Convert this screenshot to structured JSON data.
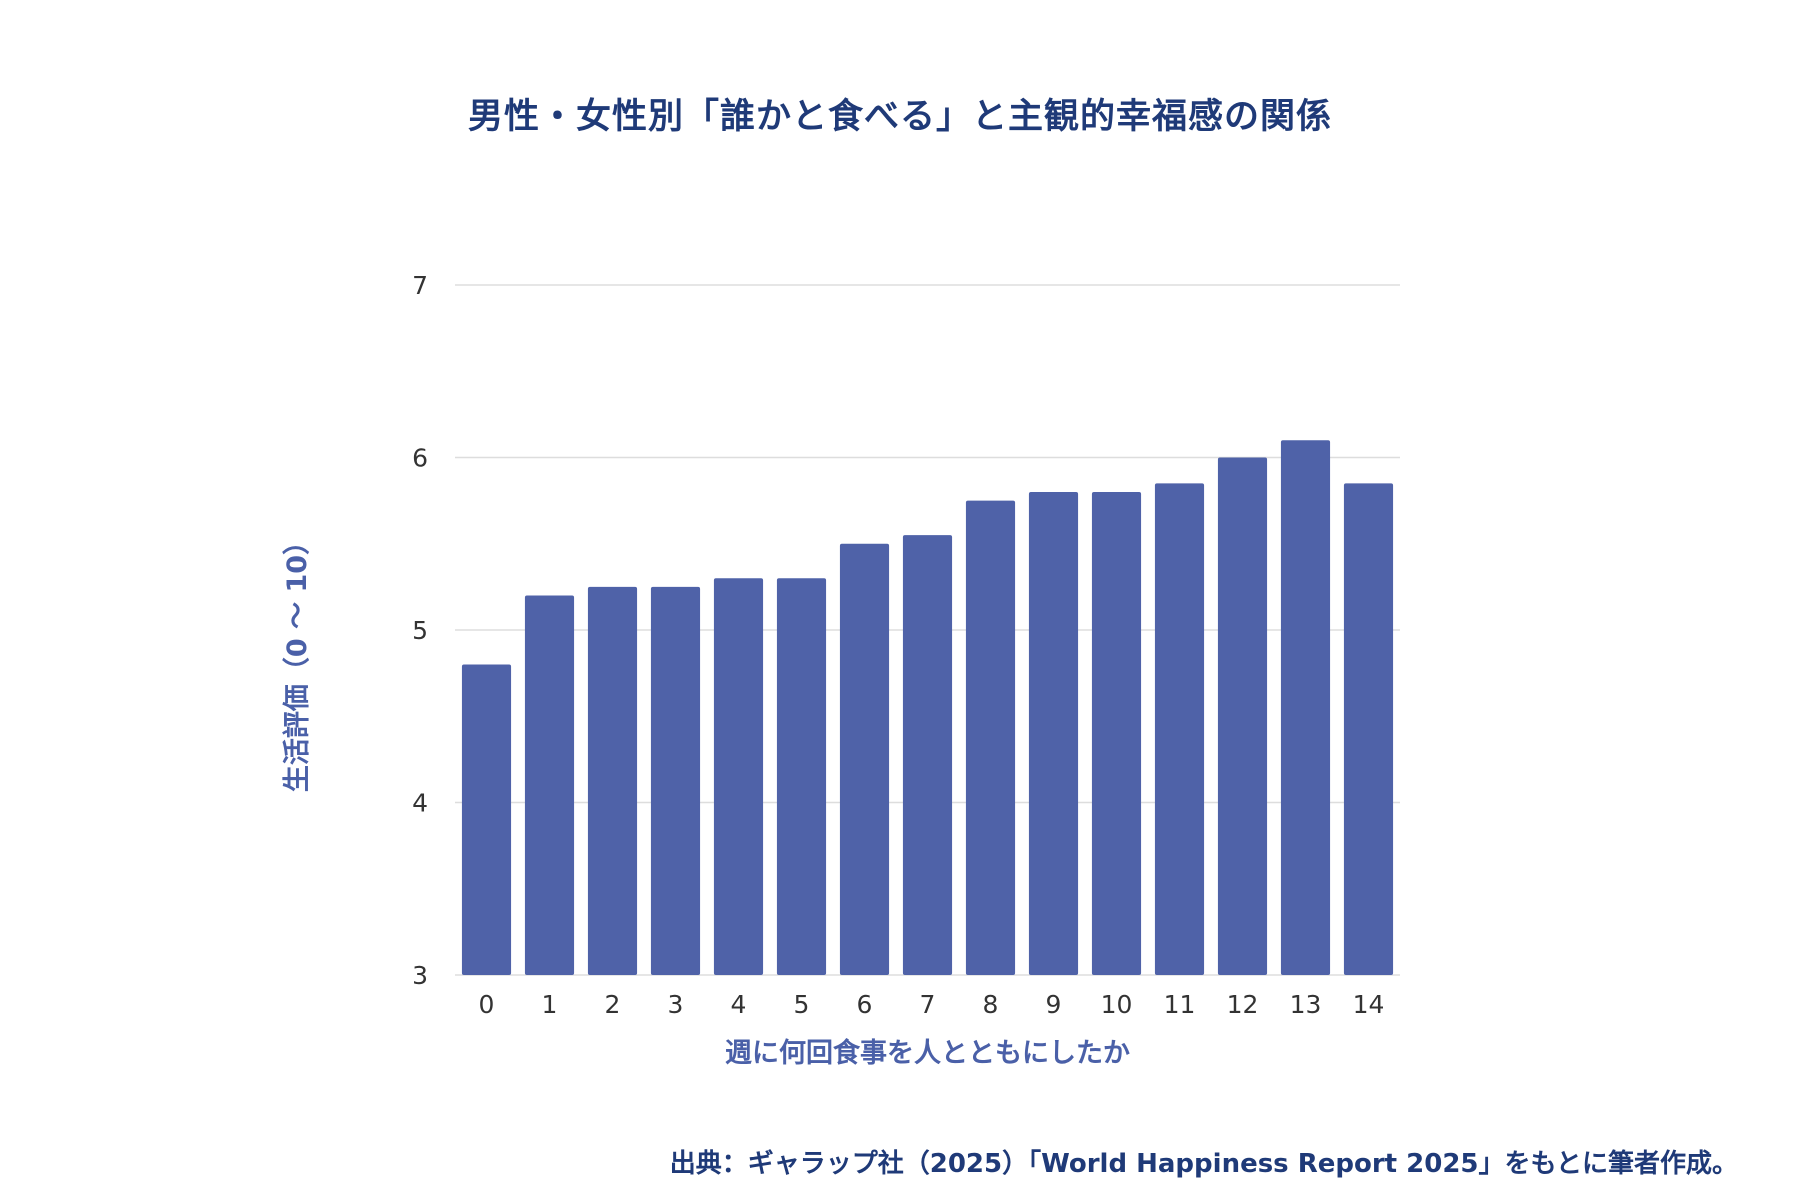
{
  "chart_data": {
    "type": "bar",
    "title": "男性・女性別「誰かと食べる」と主観的幸福感の関係",
    "xlabel": "週に何回食事を人とともにしたか",
    "ylabel": "生活評価（0 ～ 10）",
    "categories": [
      "0",
      "1",
      "2",
      "3",
      "4",
      "5",
      "6",
      "7",
      "8",
      "9",
      "10",
      "11",
      "12",
      "13",
      "14"
    ],
    "values": [
      4.8,
      5.2,
      5.25,
      5.25,
      5.3,
      5.3,
      5.5,
      5.55,
      5.75,
      5.8,
      5.8,
      5.85,
      6.0,
      6.1,
      5.85
    ],
    "ylim": [
      3,
      7
    ],
    "yticks": [
      "3",
      "4",
      "5",
      "6",
      "7"
    ],
    "grid": true,
    "bar_color": "#4f62a8",
    "grid_color": "#dddddd"
  },
  "source_note": "出典：ギャラップ社（2025）「World Happiness Report 2025」をもとに筆者作成。"
}
